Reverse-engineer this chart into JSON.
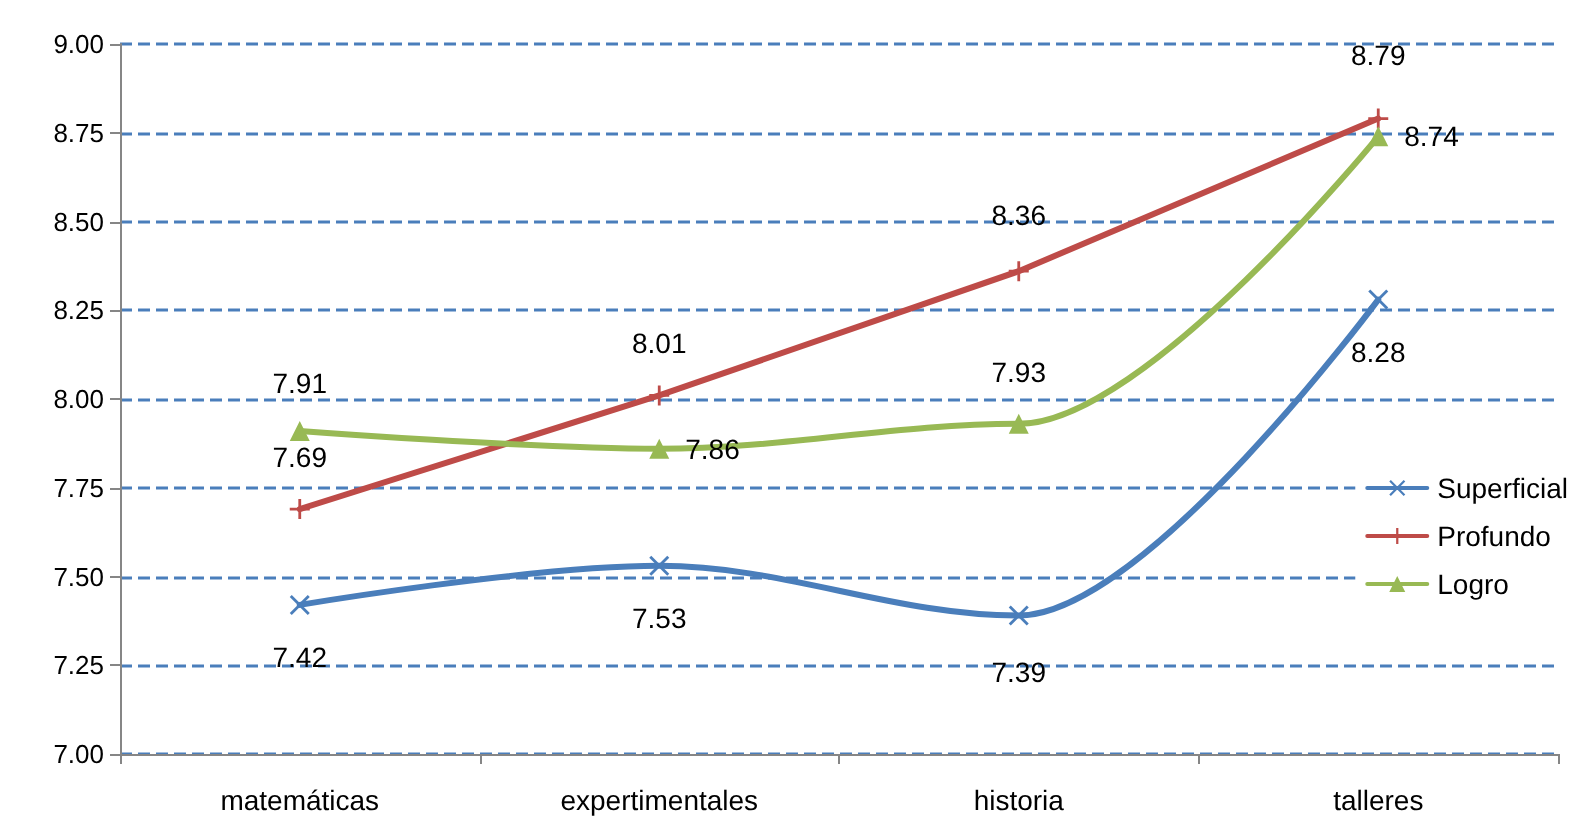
{
  "chart_data": {
    "type": "line",
    "categories": [
      "matemáticas",
      "expertimentales",
      "historia",
      "talleres"
    ],
    "series": [
      {
        "name": "Superficial",
        "color": "#4a7ebb",
        "marker": "cross",
        "values": [
          7.42,
          7.53,
          7.39,
          8.28
        ]
      },
      {
        "name": "Profundo",
        "color": "#be4b48",
        "marker": "plus",
        "values": [
          7.69,
          8.01,
          8.36,
          8.79
        ]
      },
      {
        "name": "Logro",
        "color": "#98b954",
        "marker": "triangle",
        "values": [
          7.91,
          7.86,
          7.93,
          8.74
        ]
      }
    ],
    "ylim": [
      7,
      9
    ],
    "yticks": [
      {
        "value": 7,
        "label": "7.00"
      },
      {
        "value": 7.25,
        "label": "7.25"
      },
      {
        "value": 7.5,
        "label": "7.50"
      },
      {
        "value": 7.75,
        "label": "7.75"
      },
      {
        "value": 8,
        "label": "8.00"
      },
      {
        "value": 8.25,
        "label": "8.25"
      },
      {
        "value": 8.5,
        "label": "8.50"
      },
      {
        "value": 8.75,
        "label": "8.75"
      },
      {
        "value": 9,
        "label": "9.00"
      }
    ],
    "grid": "y",
    "legend": "right",
    "data_labels": true
  }
}
